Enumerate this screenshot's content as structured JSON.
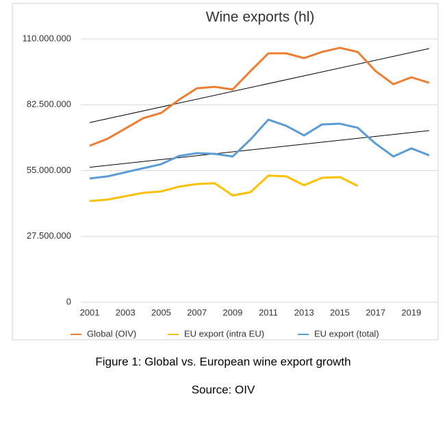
{
  "chart_data": {
    "type": "line",
    "title": "Wine exports (hl)",
    "categories": [
      "2001",
      null,
      "2003",
      null,
      "2005",
      null,
      "2007",
      null,
      "2009",
      null,
      "2011",
      null,
      "2013",
      null,
      "2015",
      null,
      "2017",
      null,
      "2019",
      null
    ],
    "series": [
      {
        "name": "Global (OIV)",
        "color": "#ed7d31",
        "trendline": true,
        "values": [
          65400000,
          68300000,
          72600000,
          76900000,
          79100000,
          84600000,
          89400000,
          90000000,
          88900000,
          96600000,
          104000000,
          104000000,
          102000000,
          104600000,
          106300000,
          104600000,
          96600000,
          91100000,
          94000000,
          91700000
        ]
      },
      {
        "name": "EU export (intra EU)",
        "color": "#ffc000",
        "trendline": false,
        "values": [
          42300000,
          42900000,
          44300000,
          45700000,
          46300000,
          48300000,
          49400000,
          49700000,
          44600000,
          46000000,
          52900000,
          52600000,
          48900000,
          52000000,
          52300000,
          48600000,
          null,
          null,
          null,
          null
        ]
      },
      {
        "name": "EU export (total)",
        "color": "#5b9bd5",
        "trendline": true,
        "values": [
          51700000,
          52600000,
          54300000,
          56000000,
          57700000,
          61100000,
          62300000,
          62000000,
          60900000,
          68000000,
          76300000,
          73700000,
          69700000,
          74300000,
          74600000,
          72900000,
          66300000,
          60900000,
          64300000,
          61400000
        ]
      }
    ],
    "ylim": [
      0,
      110000000
    ],
    "yticks": [
      0,
      {
        "value": 27500000,
        "label": "27.500.000"
      },
      {
        "value": 55000000,
        "label": "55.000.000"
      },
      {
        "value": 82500000,
        "label": "82.500.000"
      },
      {
        "value": 110000000,
        "label": "110.000.000"
      }
    ],
    "grid": true,
    "legend": "bottom"
  },
  "caption": "Figure 1: Global vs. European wine export growth",
  "source": "Source: OIV"
}
